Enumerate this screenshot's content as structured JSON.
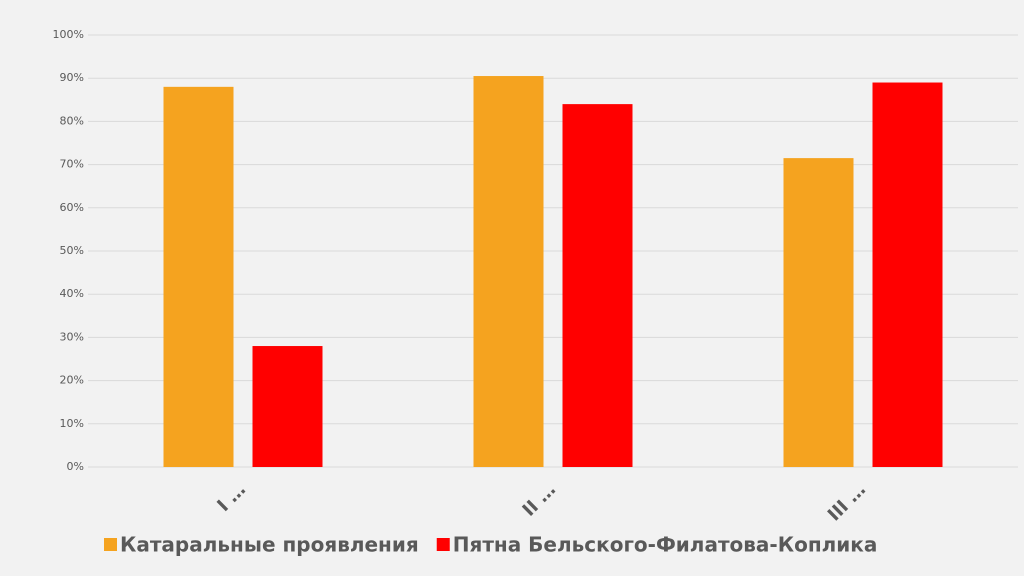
{
  "chart_data": {
    "type": "bar",
    "categories": [
      "I …",
      "II …",
      "III …"
    ],
    "series": [
      {
        "name": "Катаральные проявления",
        "color": "#f5a31f",
        "values": [
          88,
          90.5,
          71.5
        ]
      },
      {
        "name": "Пятна Бельского-Филатова-Коплика",
        "color": "#ff0000",
        "values": [
          28,
          84,
          89
        ]
      }
    ],
    "ylim": [
      0,
      100
    ],
    "yticks": [
      {
        "value": 0,
        "label": "0%"
      },
      {
        "value": 10,
        "label": "10%"
      },
      {
        "value": 20,
        "label": "20%"
      },
      {
        "value": 30,
        "label": "30%"
      },
      {
        "value": 40,
        "label": "40%"
      },
      {
        "value": 50,
        "label": "50%"
      },
      {
        "value": 60,
        "label": "60%"
      },
      {
        "value": 70,
        "label": "70%"
      },
      {
        "value": 80,
        "label": "80%"
      },
      {
        "value": 90,
        "label": "90%"
      },
      {
        "value": 100,
        "label": "100%"
      }
    ],
    "grid": true
  }
}
